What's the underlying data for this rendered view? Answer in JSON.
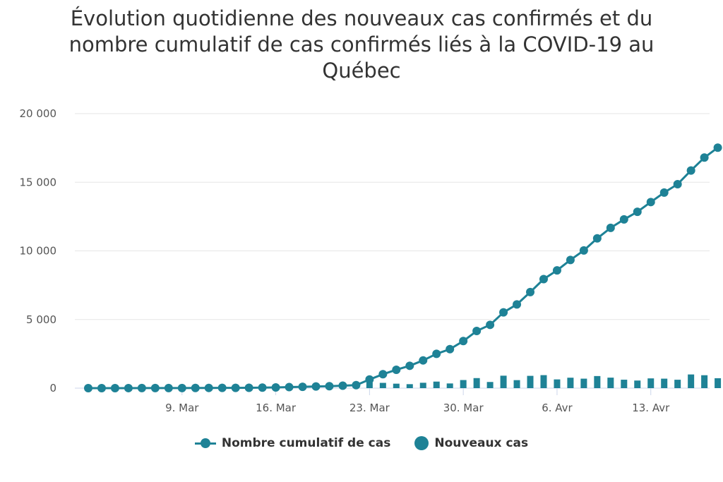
{
  "chart_data": {
    "type": "line",
    "title": "Évolution quotidienne des nouveaux cas confirmés et du nombre cumulatif de cas confirmés liés à la COVID-19 au Québec",
    "title_lines": [
      "Évolution quotidienne des nouveaux cas confirmés et du",
      "nombre cumulatif de cas confirmés liés à la COVID-19 au",
      "Québec"
    ],
    "xlabel": "",
    "ylabel": "",
    "x": [
      "2020-03-02",
      "2020-03-03",
      "2020-03-04",
      "2020-03-05",
      "2020-03-06",
      "2020-03-07",
      "2020-03-08",
      "2020-03-09",
      "2020-03-10",
      "2020-03-11",
      "2020-03-12",
      "2020-03-13",
      "2020-03-14",
      "2020-03-15",
      "2020-03-16",
      "2020-03-17",
      "2020-03-18",
      "2020-03-19",
      "2020-03-20",
      "2020-03-21",
      "2020-03-22",
      "2020-03-23",
      "2020-03-24",
      "2020-03-25",
      "2020-03-26",
      "2020-03-27",
      "2020-03-28",
      "2020-03-29",
      "2020-03-30",
      "2020-03-31",
      "2020-04-01",
      "2020-04-02",
      "2020-04-03",
      "2020-04-04",
      "2020-04-05",
      "2020-04-06",
      "2020-04-07",
      "2020-04-08",
      "2020-04-09",
      "2020-04-10",
      "2020-04-11",
      "2020-04-12",
      "2020-04-13",
      "2020-04-14",
      "2020-04-15",
      "2020-04-16",
      "2020-04-17",
      "2020-04-18"
    ],
    "x_tick_labels": [
      "9. Mar",
      "16. Mar",
      "23. Mar",
      "30. Mar",
      "6. Avr",
      "13. Avr"
    ],
    "x_tick_dates": [
      "2020-03-09",
      "2020-03-16",
      "2020-03-23",
      "2020-03-30",
      "2020-04-06",
      "2020-04-13"
    ],
    "y_tick_labels": [
      "0",
      "5 000",
      "10 000",
      "15 000",
      "20 000"
    ],
    "y_tick_values": [
      0,
      5000,
      10000,
      15000,
      20000
    ],
    "ylim": [
      0,
      20000
    ],
    "grid": true,
    "legend_position": "bottom",
    "series": [
      {
        "name": "Nombre cumulatif de cas",
        "kind": "line",
        "color": "#1e8296",
        "values": [
          1,
          1,
          2,
          3,
          4,
          5,
          7,
          9,
          13,
          16,
          18,
          21,
          24,
          39,
          50,
          74,
          94,
          121,
          139,
          181,
          219,
          628,
          1013,
          1339,
          1629,
          2021,
          2498,
          2840,
          3430,
          4162,
          4611,
          5518,
          6101,
          6997,
          7944,
          8580,
          9340,
          10031,
          10912,
          11677,
          12292,
          12846,
          13557,
          14248,
          14860,
          15857,
          16798,
          17521
        ]
      },
      {
        "name": "Nouveaux cas",
        "kind": "bar",
        "color": "#1e8296",
        "values": [
          1,
          0,
          1,
          1,
          1,
          1,
          2,
          2,
          4,
          3,
          2,
          3,
          3,
          15,
          11,
          24,
          20,
          27,
          18,
          42,
          38,
          409,
          385,
          326,
          290,
          392,
          477,
          342,
          590,
          732,
          449,
          907,
          583,
          896,
          947,
          636,
          760,
          691,
          881,
          765,
          615,
          554,
          711,
          691,
          612,
          997,
          941,
          723
        ]
      }
    ]
  }
}
